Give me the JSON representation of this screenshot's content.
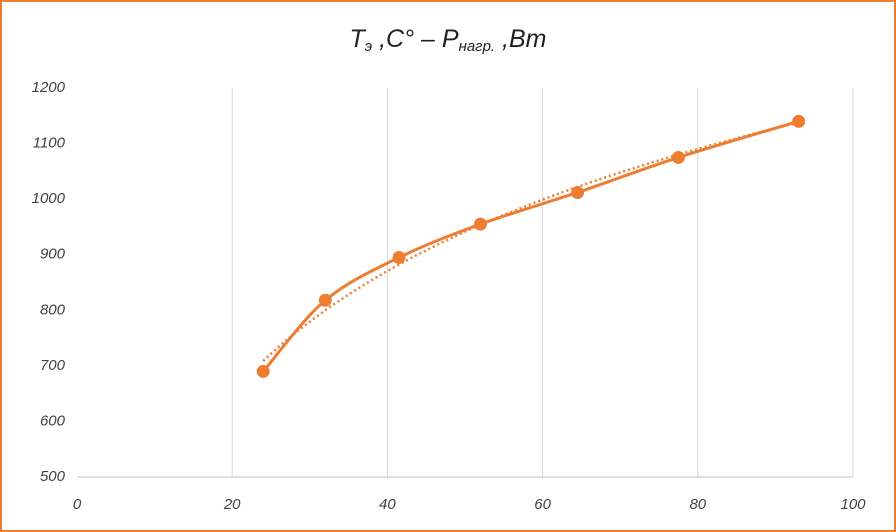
{
  "chart_data": {
    "type": "scatter-smooth",
    "title": [
      {
        "text": "T",
        "subscript": false
      },
      {
        "text": "э",
        "subscript": true
      },
      {
        "text": " ,C° – P",
        "subscript": false
      },
      {
        "text": "нагр.",
        "subscript": true
      },
      {
        "text": " ,Вт",
        "subscript": false
      }
    ],
    "series": [
      {
        "color": "#ed7d31",
        "x": [
          24,
          32,
          41.5,
          52,
          64.5,
          77.5,
          93
        ],
        "values": [
          690,
          818,
          895,
          955,
          1012,
          1075,
          1140
        ]
      }
    ],
    "trendline": "logarithmic",
    "xlim": [
      0,
      100
    ],
    "xticks": [
      0,
      20,
      40,
      60,
      80,
      100
    ],
    "ylim": [
      500,
      1200
    ],
    "yticks": [
      500,
      600,
      700,
      800,
      900,
      1000,
      1100,
      1200
    ],
    "grid": "x"
  }
}
